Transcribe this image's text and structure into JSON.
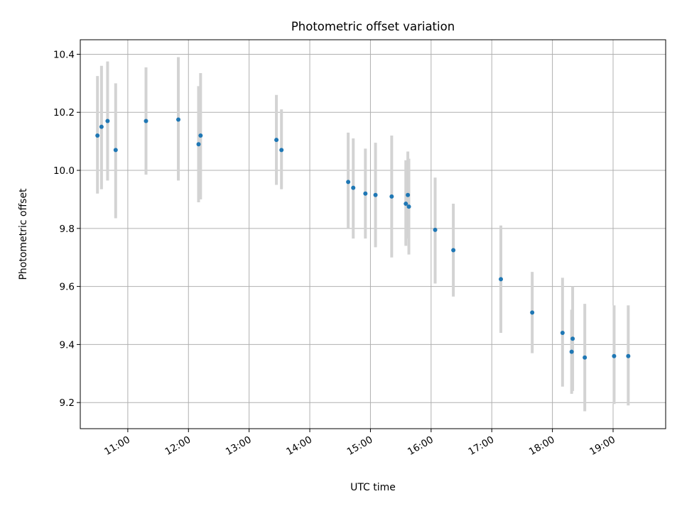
{
  "chart_data": {
    "type": "scatter",
    "title": "Photometric offset variation",
    "xlabel": "UTC time",
    "ylabel": "Photometric offset",
    "x_ticks": [
      "11:00",
      "12:00",
      "13:00",
      "14:00",
      "15:00",
      "16:00",
      "17:00",
      "18:00",
      "19:00"
    ],
    "y_ticks": [
      9.2,
      9.4,
      9.6,
      9.8,
      10.0,
      10.2,
      10.4
    ],
    "xlim": [
      "10:13",
      "19:52"
    ],
    "ylim": [
      9.11,
      10.45
    ],
    "grid": true,
    "colors": {
      "point": "#1f77b4",
      "errorbar": "#d3d3d3",
      "grid": "#b0b0b0"
    },
    "points": [
      {
        "x": "10:30",
        "y": 10.12,
        "y_low": 9.92,
        "y_high": 10.325
      },
      {
        "x": "10:34",
        "y": 10.15,
        "y_low": 9.935,
        "y_high": 10.36
      },
      {
        "x": "10:40",
        "y": 10.17,
        "y_low": 9.965,
        "y_high": 10.375
      },
      {
        "x": "10:48",
        "y": 10.07,
        "y_low": 9.835,
        "y_high": 10.3
      },
      {
        "x": "11:18",
        "y": 10.17,
        "y_low": 9.985,
        "y_high": 10.355
      },
      {
        "x": "11:50",
        "y": 10.175,
        "y_low": 9.965,
        "y_high": 10.39
      },
      {
        "x": "12:10",
        "y": 10.09,
        "y_low": 9.89,
        "y_high": 10.29
      },
      {
        "x": "12:12",
        "y": 10.12,
        "y_low": 9.9,
        "y_high": 10.335
      },
      {
        "x": "13:27",
        "y": 10.105,
        "y_low": 9.95,
        "y_high": 10.26
      },
      {
        "x": "13:32",
        "y": 10.07,
        "y_low": 9.935,
        "y_high": 10.21
      },
      {
        "x": "14:38",
        "y": 9.96,
        "y_low": 9.8,
        "y_high": 10.13
      },
      {
        "x": "14:43",
        "y": 9.94,
        "y_low": 9.765,
        "y_high": 10.11
      },
      {
        "x": "14:55",
        "y": 9.92,
        "y_low": 9.765,
        "y_high": 10.075
      },
      {
        "x": "15:05",
        "y": 9.915,
        "y_low": 9.735,
        "y_high": 10.095
      },
      {
        "x": "15:21",
        "y": 9.91,
        "y_low": 9.7,
        "y_high": 10.12
      },
      {
        "x": "15:35",
        "y": 9.885,
        "y_low": 9.74,
        "y_high": 10.035
      },
      {
        "x": "15:37",
        "y": 9.915,
        "y_low": 9.765,
        "y_high": 10.065
      },
      {
        "x": "15:38",
        "y": 9.875,
        "y_low": 9.71,
        "y_high": 10.04
      },
      {
        "x": "16:04",
        "y": 9.795,
        "y_low": 9.61,
        "y_high": 9.975
      },
      {
        "x": "16:22",
        "y": 9.725,
        "y_low": 9.565,
        "y_high": 9.885
      },
      {
        "x": "17:09",
        "y": 9.625,
        "y_low": 9.44,
        "y_high": 9.81
      },
      {
        "x": "17:40",
        "y": 9.51,
        "y_low": 9.37,
        "y_high": 9.65
      },
      {
        "x": "18:10",
        "y": 9.44,
        "y_low": 9.255,
        "y_high": 9.63
      },
      {
        "x": "18:19",
        "y": 9.375,
        "y_low": 9.23,
        "y_high": 9.52
      },
      {
        "x": "18:20",
        "y": 9.42,
        "y_low": 9.24,
        "y_high": 9.6
      },
      {
        "x": "18:32",
        "y": 9.355,
        "y_low": 9.17,
        "y_high": 9.54
      },
      {
        "x": "19:01",
        "y": 9.36,
        "y_low": 9.195,
        "y_high": 9.535
      },
      {
        "x": "19:15",
        "y": 9.36,
        "y_low": 9.19,
        "y_high": 9.535
      }
    ]
  }
}
